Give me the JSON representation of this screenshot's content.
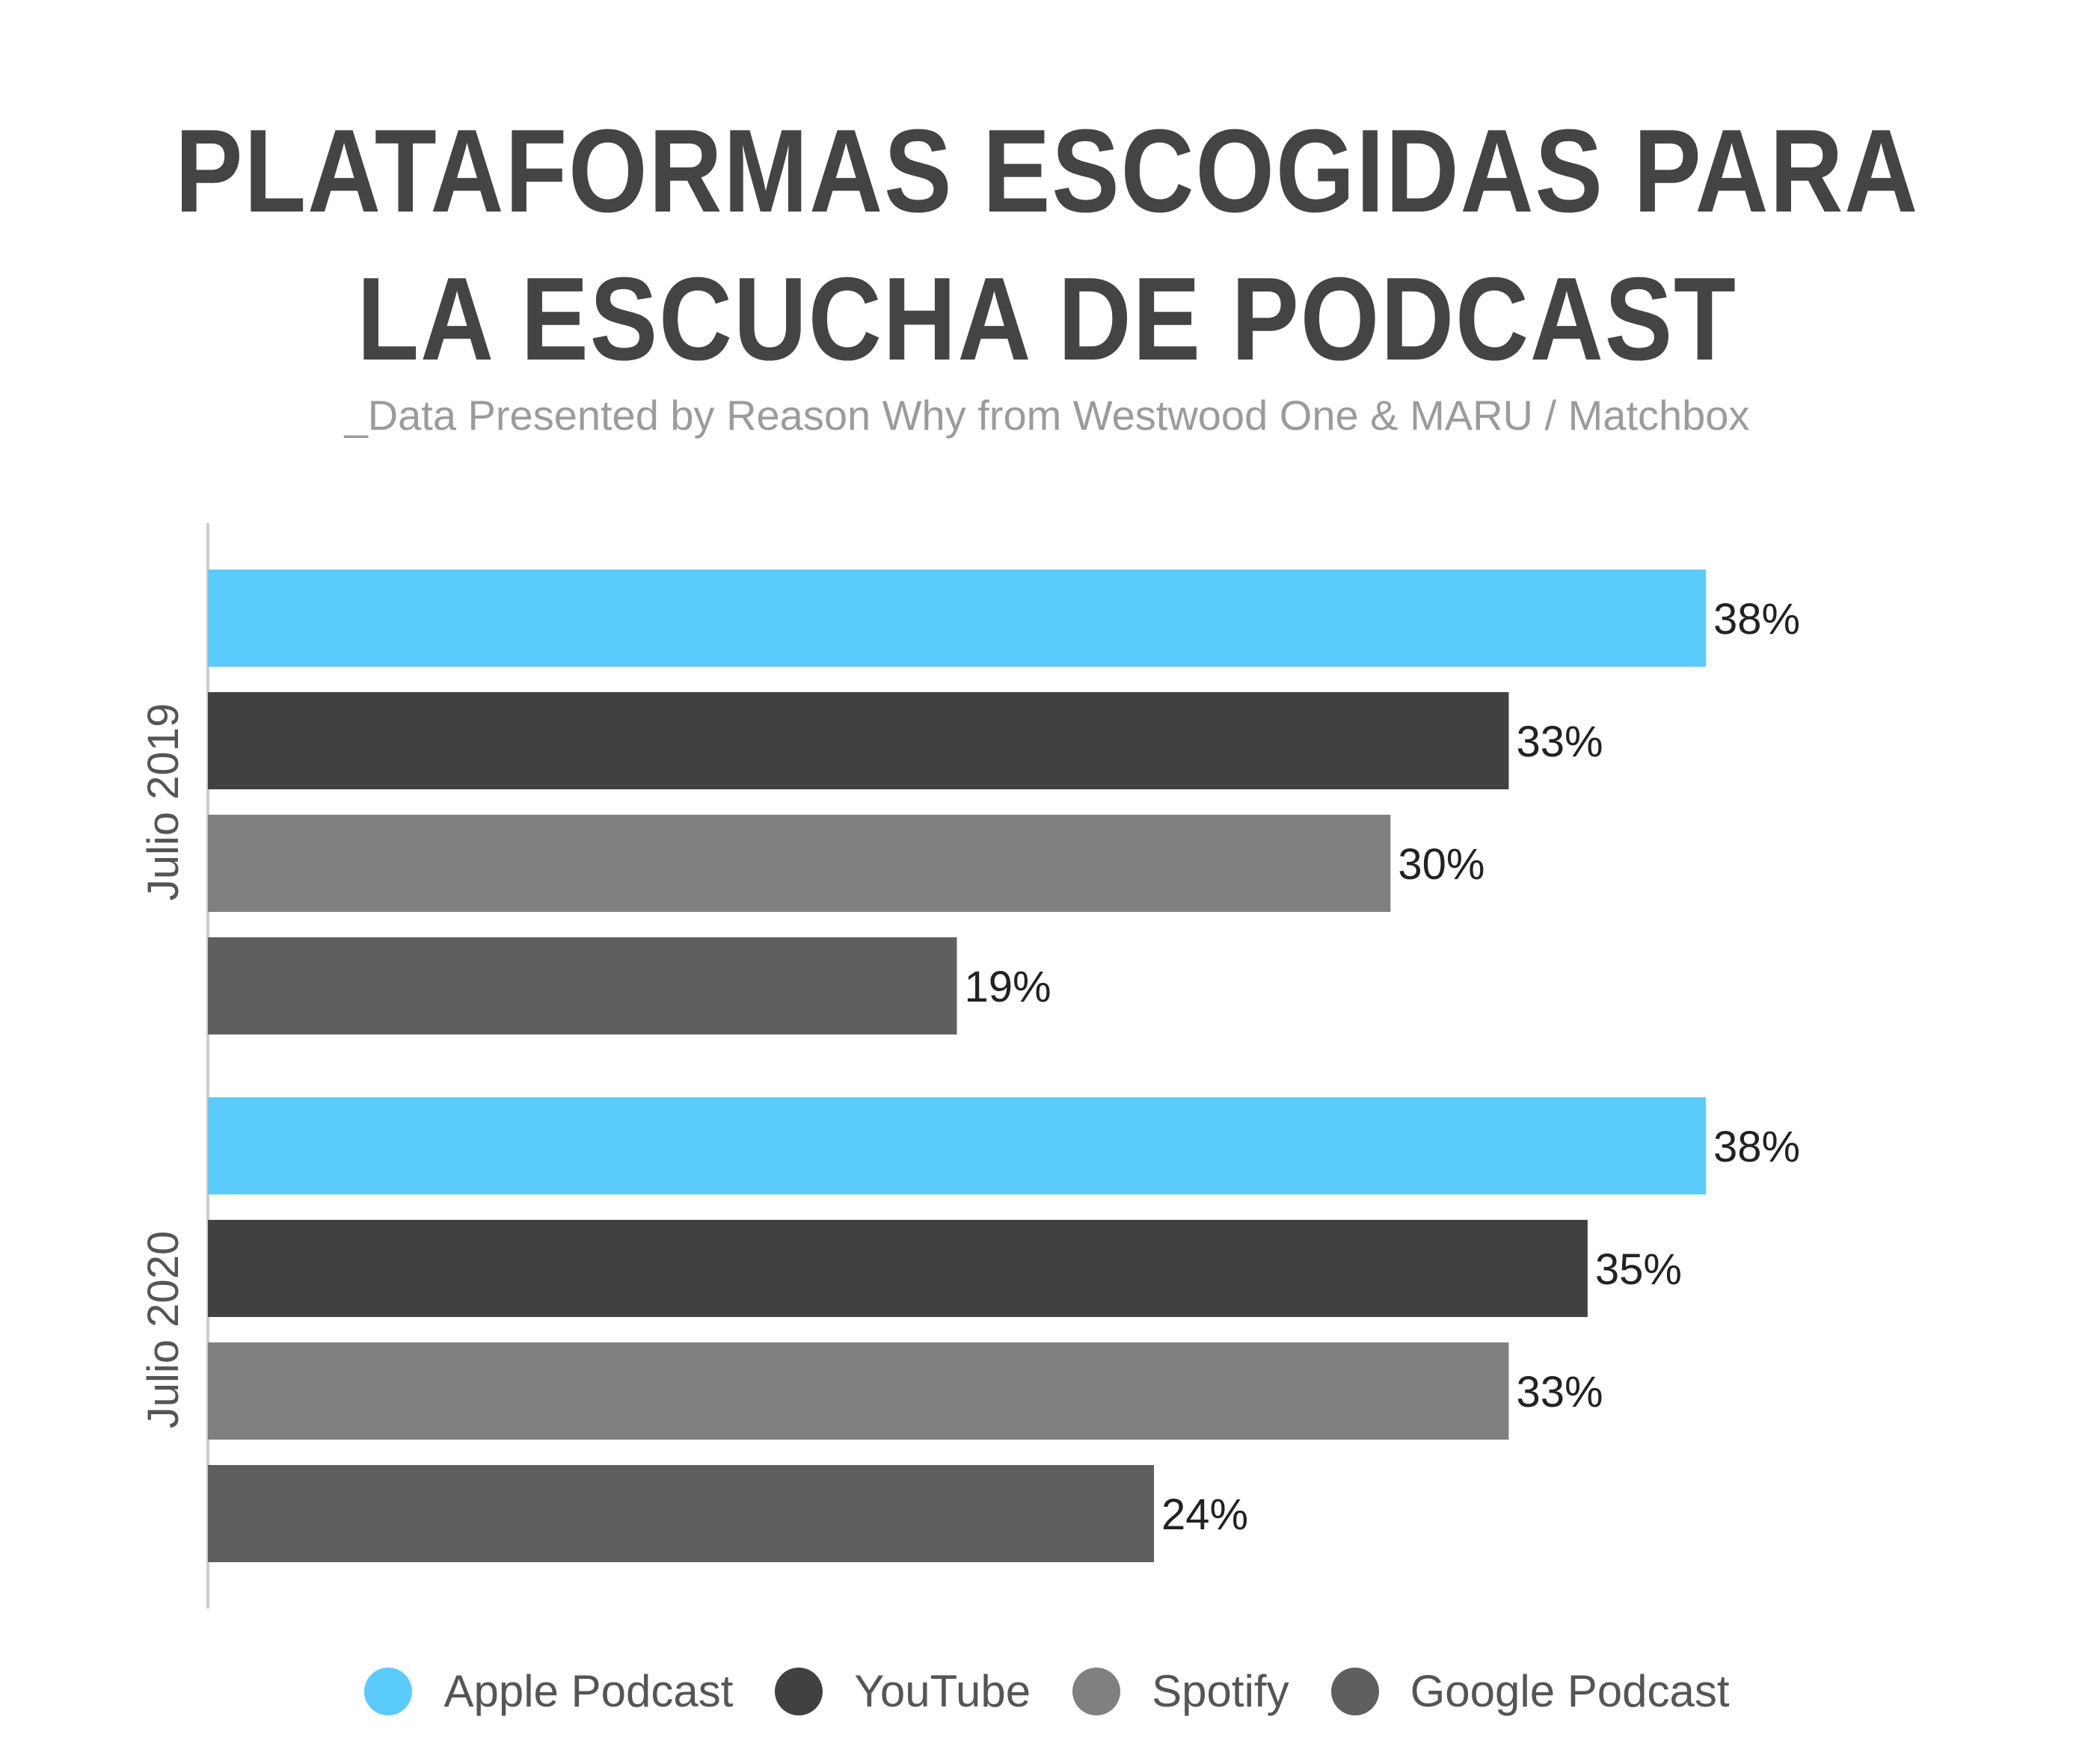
{
  "title_lines": [
    "PLATAFORMAS ESCOGIDAS PARA",
    "LA ESCUCHA DE PODCAST"
  ],
  "subtitle": "_Data Presented by Reason Why from Westwood One & MARU / Matchbox",
  "chart_data": {
    "type": "bar",
    "orientation": "horizontal",
    "title": "PLATAFORMAS ESCOGIDAS PARA LA ESCUCHA DE PODCAST",
    "subtitle": "_Data Presented by Reason Why from Westwood One & MARU / Matchbox",
    "categories": [
      "Julio 2019",
      "Julio 2020"
    ],
    "series": [
      {
        "name": "Apple Podcast",
        "color": "#5acbfb",
        "values": [
          38,
          38
        ]
      },
      {
        "name": "YouTube",
        "color": "#414141",
        "values": [
          33,
          35
        ]
      },
      {
        "name": "Spotify",
        "color": "#808080",
        "values": [
          30,
          33
        ]
      },
      {
        "name": "Google Podcast",
        "color": "#5f5f5f",
        "values": [
          19,
          24
        ]
      }
    ],
    "value_suffix": "%",
    "xlim": [
      0,
      38
    ],
    "grid": false,
    "legend_position": "bottom"
  }
}
